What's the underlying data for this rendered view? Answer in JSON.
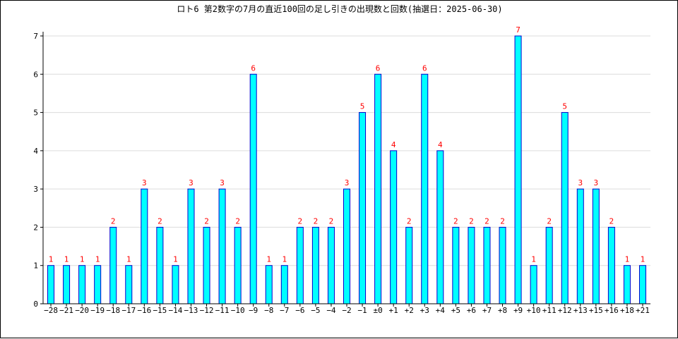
{
  "chart_data": {
    "type": "bar",
    "title": "ロト6 第2数字の7月の直近100回の足し引きの出現数と回数(抽選日：2025-06-30)",
    "xlabel": "",
    "ylabel": "",
    "categories": [
      "−28",
      "−21",
      "−20",
      "−19",
      "−18",
      "−17",
      "−16",
      "−15",
      "−14",
      "−13",
      "−12",
      "−11",
      "−10",
      "−9",
      "−8",
      "−7",
      "−6",
      "−5",
      "−4",
      "−2",
      "−1",
      "±0",
      "+1",
      "+2",
      "+3",
      "+4",
      "+5",
      "+6",
      "+7",
      "+8",
      "+9",
      "+10",
      "+11",
      "+12",
      "+13",
      "+15",
      "+16",
      "+18",
      "+21"
    ],
    "values": [
      1,
      1,
      1,
      1,
      2,
      1,
      3,
      2,
      1,
      3,
      2,
      3,
      2,
      6,
      1,
      1,
      2,
      2,
      2,
      3,
      5,
      6,
      4,
      2,
      6,
      4,
      2,
      2,
      2,
      2,
      7,
      1,
      2,
      5,
      3,
      3,
      2,
      1,
      1
    ],
    "ylim": [
      0,
      7
    ],
    "yticks": [
      0,
      1,
      2,
      3,
      4,
      5,
      6,
      7
    ],
    "grid": true,
    "bar_color": "#00ffff",
    "bar_edge_color": "#0000cd",
    "label_color": "#ff0000"
  }
}
